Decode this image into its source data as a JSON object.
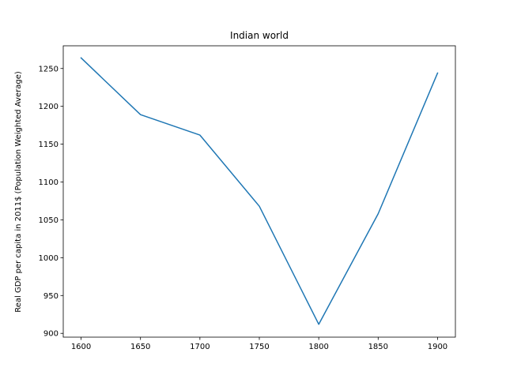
{
  "chart_data": {
    "type": "line",
    "title": "Indian world",
    "xlabel": "",
    "ylabel": "Real GDP per capita in 2011$ (Population Weighted Average)",
    "x": [
      1600,
      1650,
      1700,
      1750,
      1800,
      1850,
      1900
    ],
    "series": [
      {
        "values": [
          1264,
          1189,
          1162,
          1068,
          912,
          1058,
          1244
        ]
      }
    ],
    "xlim": [
      1585,
      1915
    ],
    "ylim": [
      895,
      1280
    ],
    "xticks": [
      1600,
      1650,
      1700,
      1750,
      1800,
      1850,
      1900
    ],
    "yticks": [
      900,
      950,
      1000,
      1050,
      1100,
      1150,
      1200,
      1250
    ],
    "grid": false,
    "line_color": "#1f77b4"
  }
}
